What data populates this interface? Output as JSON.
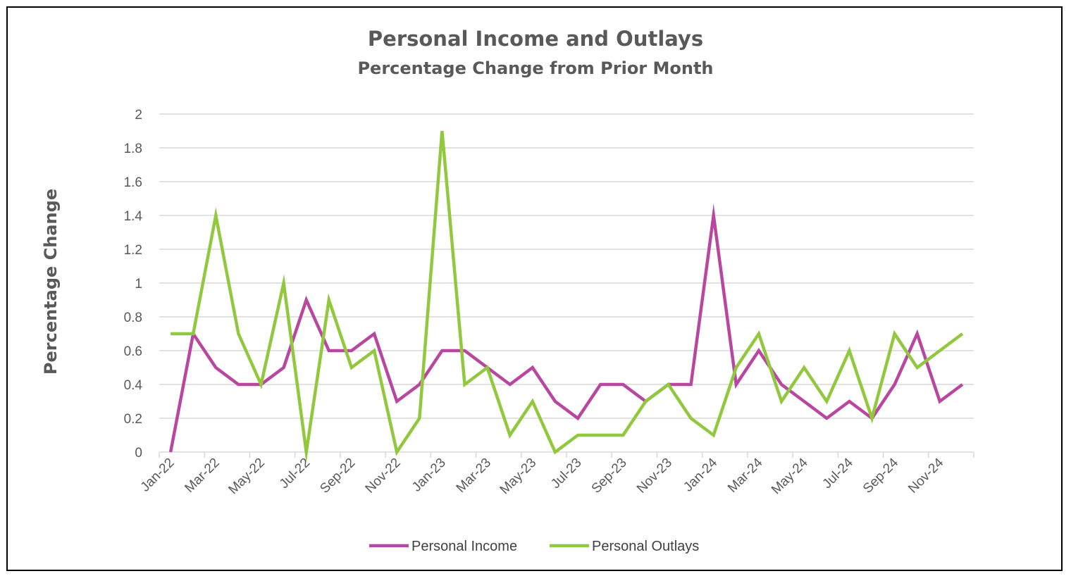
{
  "chart_data": {
    "type": "line",
    "title": "Personal Income and Outlays",
    "subtitle": "Percentage Change from Prior Month",
    "xlabel": "",
    "ylabel": "Percentage Change",
    "ylim": [
      0,
      2
    ],
    "yticks": [
      "0",
      "0.2",
      "0.4",
      "0.6",
      "0.8",
      "1",
      "1.2",
      "1.4",
      "1.6",
      "1.8",
      "2"
    ],
    "grid": true,
    "legend": "bottom",
    "x": [
      "Jan-22",
      "Feb-22",
      "Mar-22",
      "Apr-22",
      "May-22",
      "Jun-22",
      "Jul-22",
      "Aug-22",
      "Sep-22",
      "Oct-22",
      "Nov-22",
      "Dec-22",
      "Jan-23",
      "Feb-23",
      "Mar-23",
      "Apr-23",
      "May-23",
      "Jun-23",
      "Jul-23",
      "Aug-23",
      "Sep-23",
      "Oct-23",
      "Nov-23",
      "Dec-23",
      "Jan-24",
      "Feb-24",
      "Mar-24",
      "Apr-24",
      "May-24",
      "Jun-24",
      "Jul-24",
      "Aug-24",
      "Sep-24",
      "Oct-24",
      "Nov-24",
      "Dec-24"
    ],
    "xtick_labels": [
      "Jan-22",
      "Mar-22",
      "May-22",
      "Jul-22",
      "Sep-22",
      "Nov-22",
      "Jan-23",
      "Mar-23",
      "May-23",
      "Jul-23",
      "Sep-23",
      "Nov-23",
      "Jan-24",
      "Mar-24",
      "May-24",
      "Jul-24",
      "Sep-24",
      "Nov-24"
    ],
    "series": [
      {
        "name": "Personal Income",
        "color": "#b847a0",
        "values": [
          0,
          0.7,
          0.5,
          0.4,
          0.4,
          0.5,
          0.9,
          0.6,
          0.6,
          0.7,
          0.3,
          0.4,
          0.6,
          0.6,
          0.5,
          0.4,
          0.5,
          0.3,
          0.2,
          0.4,
          0.4,
          0.3,
          0.4,
          0.4,
          1.4,
          0.4,
          0.6,
          0.4,
          0.3,
          0.2,
          0.3,
          0.2,
          0.4,
          0.7,
          0.3,
          0.4
        ]
      },
      {
        "name": "Personal Outlays",
        "color": "#92c83e",
        "values": [
          0.7,
          0.7,
          1.4,
          0.7,
          0.4,
          1.0,
          0,
          0.9,
          0.5,
          0.6,
          0,
          0.2,
          1.9,
          0.4,
          0.5,
          0.1,
          0.3,
          0,
          0.1,
          0.1,
          0.1,
          0.3,
          0.4,
          0.2,
          0.1,
          0.5,
          0.7,
          0.3,
          0.5,
          0.3,
          0.6,
          0.2,
          0.7,
          0.5,
          0.6,
          0.7
        ]
      }
    ]
  }
}
